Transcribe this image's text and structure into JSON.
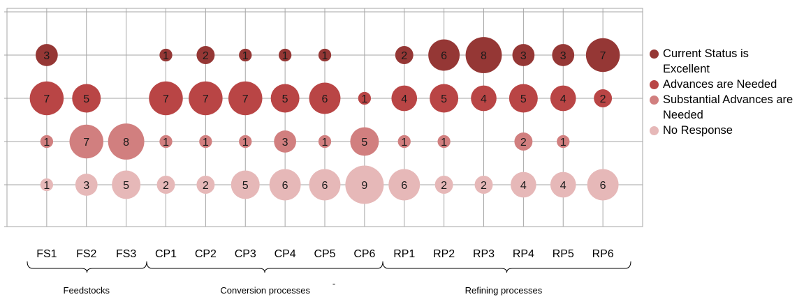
{
  "chart_data": {
    "type": "bubble",
    "categories": [
      "FS1",
      "FS2",
      "FS3",
      "CP1",
      "CP2",
      "CP3",
      "CP4",
      "CP5",
      "CP6",
      "RP1",
      "RP2",
      "RP3",
      "RP4",
      "RP5",
      "RP6"
    ],
    "groups": [
      {
        "label": "Feedstocks",
        "categories": [
          "FS1",
          "FS2",
          "FS3"
        ]
      },
      {
        "label": "Conversion processes",
        "categories": [
          "CP1",
          "CP2",
          "CP3",
          "CP4",
          "CP5",
          "CP6"
        ]
      },
      {
        "label": "Refining processes",
        "categories": [
          "RP1",
          "RP2",
          "RP3",
          "RP4",
          "RP5",
          "RP6"
        ]
      }
    ],
    "stray_mark": "-",
    "series": [
      {
        "name": "Current Status is Excellent",
        "color": "#953735",
        "values": [
          3,
          null,
          null,
          1,
          2,
          1,
          1,
          1,
          null,
          2,
          6,
          8,
          3,
          3,
          7
        ]
      },
      {
        "name": "Advances are Needed",
        "color": "#b94545",
        "values": [
          7,
          5,
          null,
          7,
          7,
          7,
          5,
          6,
          1,
          4,
          5,
          4,
          5,
          4,
          2
        ]
      },
      {
        "name": "Substantial Advances are Needed",
        "color": "#d17f7f",
        "values": [
          1,
          7,
          8,
          1,
          1,
          1,
          3,
          1,
          5,
          1,
          1,
          null,
          2,
          1,
          null
        ]
      },
      {
        "name": "No Response",
        "color": "#e6b8b8",
        "values": [
          1,
          3,
          5,
          2,
          2,
          5,
          6,
          6,
          9,
          6,
          2,
          2,
          4,
          4,
          6
        ]
      }
    ],
    "legend_position": "right",
    "grid": true
  },
  "legend": [
    {
      "label": "Current Status is Excellent",
      "color": "#953735"
    },
    {
      "label": "Advances are Needed",
      "color": "#b94545"
    },
    {
      "label": "Substantial Advances are Needed",
      "color": "#d17f7f"
    },
    {
      "label": "No Response",
      "color": "#e6b8b8"
    }
  ]
}
